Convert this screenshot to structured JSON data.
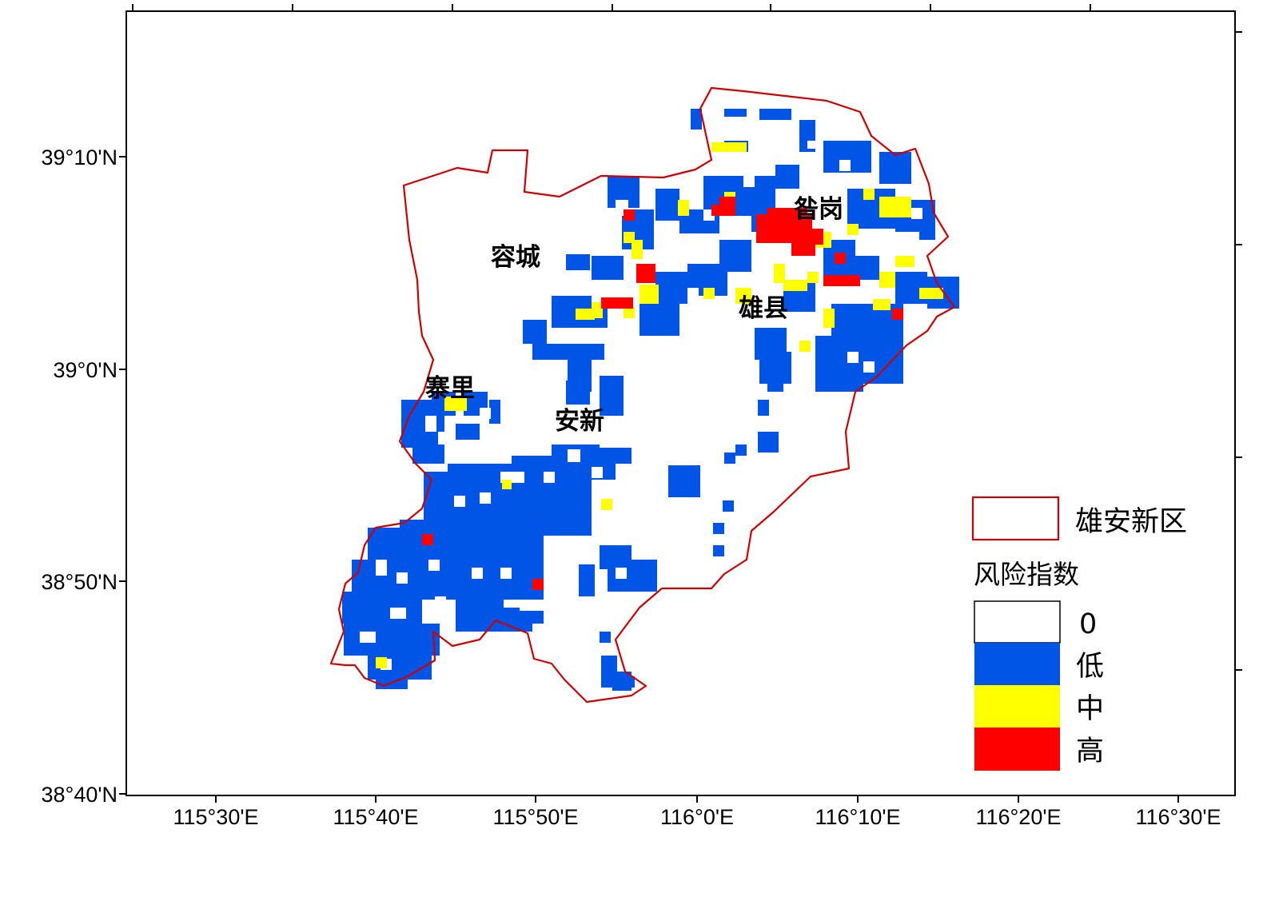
{
  "map": {
    "x_ticks": [
      "115°30'E",
      "115°40'E",
      "115°50'E",
      "116°0'E",
      "116°10'E",
      "116°20'E",
      "116°30'E"
    ],
    "y_ticks": [
      "39°10'N",
      "39°0'N",
      "38°50'N",
      "38°40'N"
    ],
    "towns": [
      "昝岗",
      "容城",
      "雄县",
      "寨里",
      "安新"
    ],
    "colors": {
      "boundary": "#cc0000",
      "risk_zero": "#ffffff",
      "risk_low": "#0055e6",
      "risk_mid": "#ffff00",
      "risk_high": "#ff0000"
    }
  },
  "legend": {
    "boundary_label": "雄安新区",
    "title": "风险指数",
    "classes": [
      "0",
      "低",
      "中",
      "高"
    ]
  }
}
